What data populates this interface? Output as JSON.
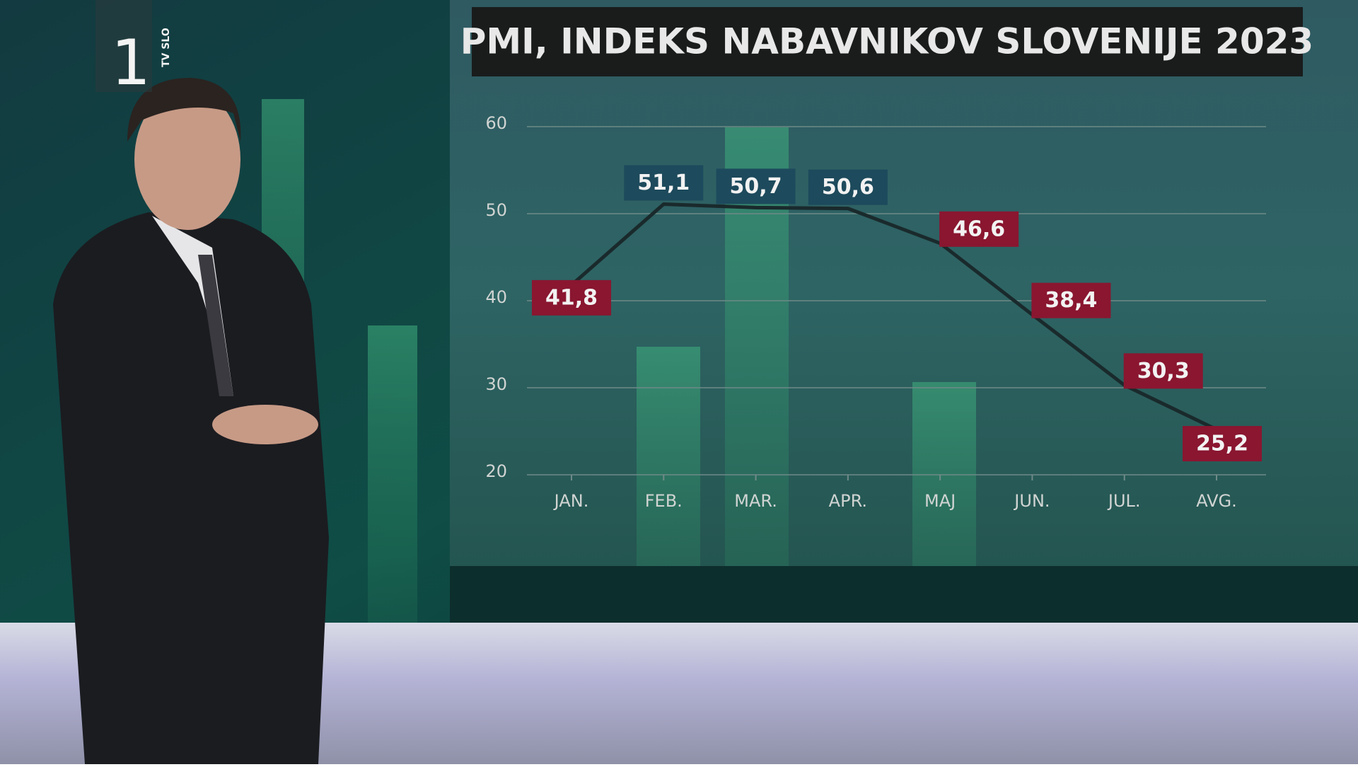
{
  "chart_data": {
    "type": "line",
    "title": "PMI, INDEKS NABAVNIKOV SLOVENIJE 2023",
    "categories": [
      "JAN.",
      "FEB.",
      "MAR.",
      "APR.",
      "MAJ",
      "JUN.",
      "JUL.",
      "AVG."
    ],
    "values": [
      41.8,
      51.1,
      50.7,
      50.6,
      46.6,
      38.4,
      30.3,
      25.2
    ],
    "value_labels": [
      "41,8",
      "51,1",
      "50,7",
      "50,6",
      "46,6",
      "38,4",
      "30,3",
      "25,2"
    ],
    "label_colors": [
      "#8a1630",
      "#1d4a5c",
      "#1d4a5c",
      "#1d4a5c",
      "#8a1630",
      "#8a1630",
      "#8a1630",
      "#8a1630"
    ],
    "color": "#1a2a2c",
    "ylim": [
      20,
      60
    ],
    "yticks": [
      20,
      30,
      40,
      50,
      60
    ],
    "grid": true
  },
  "logo": {
    "channel": "1",
    "name": "TV SLO"
  }
}
